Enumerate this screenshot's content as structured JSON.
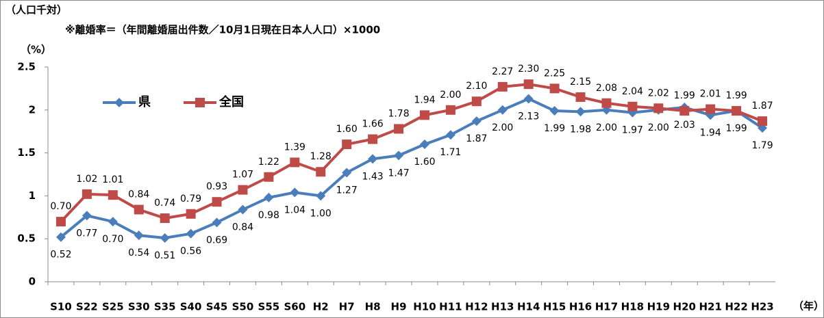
{
  "chart_data": {
    "type": "line",
    "title": "（人口千対）",
    "subtitle": "※離婚率＝（年間離婚届出件数／10月1日現在日本人人口）×1000",
    "y_label": "（%）",
    "x_label": "（年）",
    "categories": [
      "S10",
      "S22",
      "S25",
      "S30",
      "S35",
      "S40",
      "S45",
      "S50",
      "S55",
      "S60",
      "H2",
      "H7",
      "H8",
      "H9",
      "H10",
      "H11",
      "H12",
      "H13",
      "H14",
      "H15",
      "H16",
      "H17",
      "H18",
      "H19",
      "H20",
      "H21",
      "H22",
      "H23"
    ],
    "series": [
      {
        "name": "県",
        "color": "#4a7ebb",
        "marker": "diamond",
        "values": [
          0.52,
          0.77,
          0.7,
          0.54,
          0.51,
          0.56,
          0.69,
          0.84,
          0.98,
          1.04,
          1.0,
          1.27,
          1.43,
          1.47,
          1.6,
          1.71,
          1.87,
          2.0,
          2.13,
          1.99,
          1.98,
          2.0,
          1.97,
          2.0,
          2.03,
          1.94,
          1.99,
          1.79
        ],
        "value_labels": [
          "0.52",
          "0.77",
          "0.70",
          "0.54",
          "0.51",
          "0.56",
          "0.69",
          "0.84",
          "0.98",
          "1.04",
          "1.00",
          "1.27",
          "1.43",
          "1.47",
          "1.60",
          "1.71",
          "1.87",
          "2.00",
          "2.13",
          "1.99",
          "1.98",
          "2.00",
          "1.97",
          "2.00",
          "2.03",
          "1.94",
          "1.99",
          "1.79"
        ]
      },
      {
        "name": "全国",
        "color": "#be4b48",
        "marker": "square",
        "values": [
          0.7,
          1.02,
          1.01,
          0.84,
          0.74,
          0.79,
          0.93,
          1.07,
          1.22,
          1.39,
          1.28,
          1.6,
          1.66,
          1.78,
          1.94,
          2.0,
          2.1,
          2.27,
          2.3,
          2.25,
          2.15,
          2.08,
          2.04,
          2.02,
          1.99,
          2.01,
          1.99,
          1.87
        ],
        "value_labels": [
          "0.70",
          "1.02",
          "1.01",
          "0.84",
          "0.74",
          "0.79",
          "0.93",
          "1.07",
          "1.22",
          "1.39",
          "1.28",
          "1.60",
          "1.66",
          "1.78",
          "1.94",
          "2.00",
          "2.10",
          "2.27",
          "2.30",
          "2.25",
          "2.15",
          "2.08",
          "2.04",
          "2.02",
          "1.99",
          "2.01",
          "1.99",
          "1.87"
        ]
      }
    ],
    "ylim": [
      0,
      2.5
    ],
    "yticks": [
      0,
      0.5,
      1,
      1.5,
      2,
      2.5
    ],
    "grid": false,
    "legend": "upper left"
  }
}
